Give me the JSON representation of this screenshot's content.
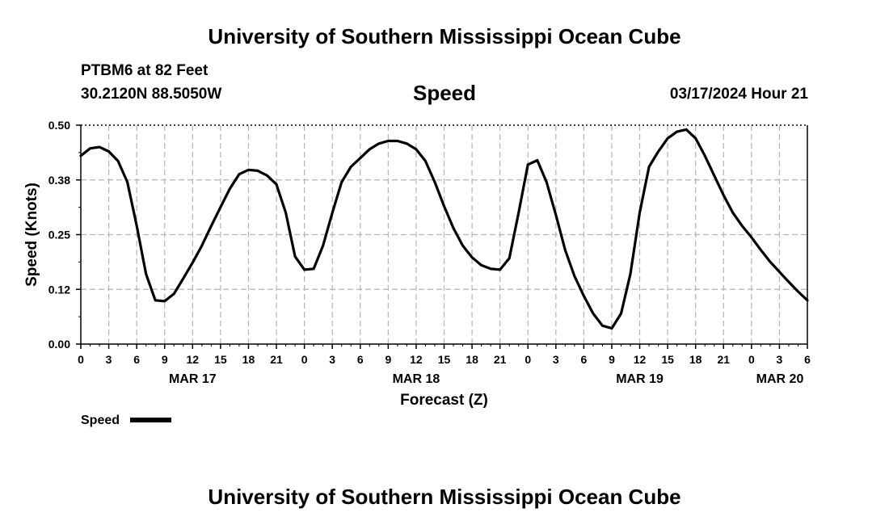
{
  "header": {
    "title": "University of Southern Mississippi Ocean Cube",
    "station": "PTBM6 at 82 Feet",
    "coords": "30.2120N  88.5050W",
    "datetime": "03/17/2024 Hour 21",
    "footer_title": "University of Southern Mississippi Ocean Cube"
  },
  "chart_data": {
    "type": "line",
    "title": "Speed",
    "xlabel": "Forecast (Z)",
    "ylabel": "Speed (Knots)",
    "xlim": [
      0,
      78
    ],
    "ylim": [
      0,
      0.5
    ],
    "y_ticks": [
      0,
      0.125,
      0.25,
      0.375,
      0.5
    ],
    "y_tick_labels": [
      "0.00",
      "0.12",
      "0.25",
      "0.38",
      "0.50"
    ],
    "x_ticks": [
      0,
      3,
      6,
      9,
      12,
      15,
      18,
      21,
      24,
      27,
      30,
      33,
      36,
      39,
      42,
      45,
      48,
      51,
      54,
      57,
      60,
      63,
      66,
      69,
      72,
      75,
      78
    ],
    "x_tick_labels": [
      "0",
      "3",
      "6",
      "9",
      "12",
      "15",
      "18",
      "21",
      "0",
      "3",
      "6",
      "9",
      "12",
      "15",
      "18",
      "21",
      "0",
      "3",
      "6",
      "9",
      "12",
      "15",
      "18",
      "21",
      "0",
      "3",
      "6"
    ],
    "date_labels": [
      {
        "label": "MAR 17",
        "x": 12
      },
      {
        "label": "MAR 18",
        "x": 36
      },
      {
        "label": "MAR 19",
        "x": 60
      },
      {
        "label": "MAR 20",
        "x": 78
      }
    ],
    "grid": true,
    "legend": [
      {
        "name": "Speed",
        "color": "#000000"
      }
    ],
    "series": [
      {
        "name": "Speed",
        "x": [
          0,
          1,
          2,
          3,
          4,
          5,
          6,
          7,
          8,
          9,
          10,
          11,
          12,
          13,
          14,
          15,
          16,
          17,
          18,
          19,
          20,
          21,
          22,
          23,
          24,
          25,
          26,
          27,
          28,
          29,
          30,
          31,
          32,
          33,
          34,
          35,
          36,
          37,
          38,
          39,
          40,
          41,
          42,
          43,
          44,
          45,
          46,
          47,
          48,
          49,
          50,
          51,
          52,
          53,
          54,
          55,
          56,
          57,
          58,
          59,
          60,
          61,
          62,
          63,
          64,
          65,
          66,
          67,
          68,
          69,
          70,
          71,
          72,
          73,
          74,
          75,
          76,
          77,
          78
        ],
        "values": [
          0.43,
          0.447,
          0.45,
          0.44,
          0.418,
          0.37,
          0.27,
          0.16,
          0.1,
          0.098,
          0.115,
          0.15,
          0.186,
          0.225,
          0.27,
          0.313,
          0.355,
          0.388,
          0.398,
          0.396,
          0.385,
          0.365,
          0.3,
          0.2,
          0.17,
          0.172,
          0.225,
          0.3,
          0.37,
          0.405,
          0.425,
          0.445,
          0.458,
          0.464,
          0.464,
          0.458,
          0.445,
          0.418,
          0.37,
          0.315,
          0.265,
          0.225,
          0.198,
          0.18,
          0.172,
          0.17,
          0.196,
          0.3,
          0.41,
          0.42,
          0.37,
          0.295,
          0.215,
          0.155,
          0.11,
          0.07,
          0.042,
          0.036,
          0.07,
          0.16,
          0.3,
          0.405,
          0.44,
          0.47,
          0.485,
          0.49,
          0.47,
          0.43,
          0.385,
          0.34,
          0.3,
          0.27,
          0.244,
          0.215,
          0.188,
          0.165,
          0.142,
          0.12,
          0.1
        ]
      }
    ]
  }
}
